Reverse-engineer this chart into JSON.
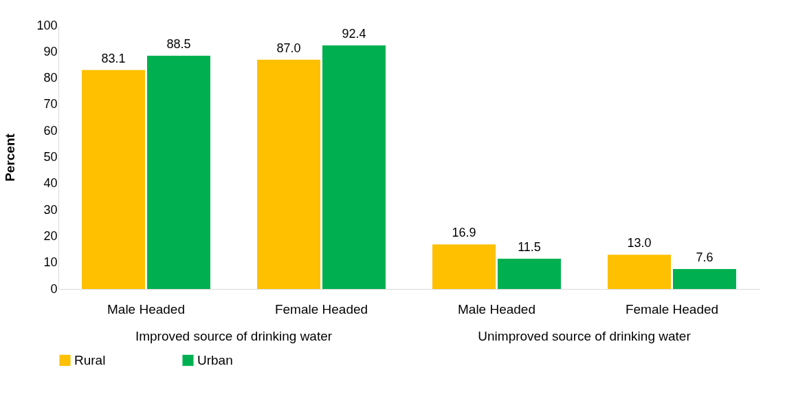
{
  "chart_data": {
    "type": "bar",
    "ylabel": "Percent",
    "categories": [
      "Male Headed",
      "Female Headed",
      "Male Headed",
      "Female Headed"
    ],
    "series": [
      {
        "name": "Rural",
        "color": "#ffc000",
        "values": [
          83.1,
          87.0,
          16.9,
          13.0
        ]
      },
      {
        "name": "Urban",
        "color": "#00b050",
        "values": [
          88.5,
          92.4,
          11.5,
          7.6
        ]
      }
    ],
    "ylim": [
      0,
      100
    ],
    "yticks": [
      0,
      10,
      20,
      30,
      40,
      50,
      60,
      70,
      80,
      90,
      100
    ],
    "value_labels": [
      [
        "83.1",
        "87.0",
        "16.9",
        "13.0"
      ],
      [
        "88.5",
        "92.4",
        "11.5",
        "7.6"
      ]
    ],
    "grid": false,
    "legend": "bottom",
    "annotations": [
      "Improved source of drinking water",
      "Unimproved source of drinking water"
    ]
  }
}
